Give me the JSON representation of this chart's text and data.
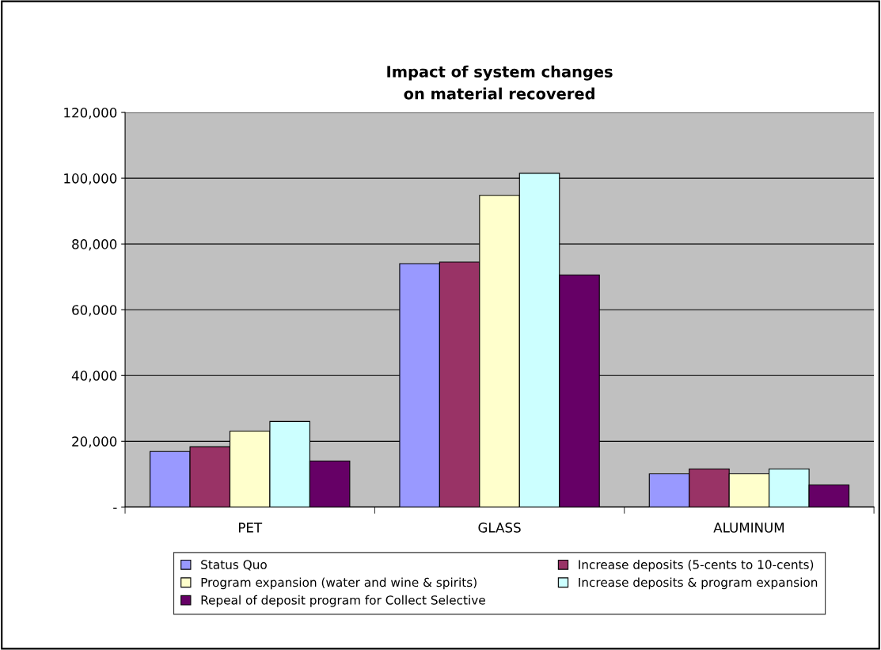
{
  "chart_data": {
    "type": "bar",
    "title": "Impact of system changes\non material recovered",
    "categories": [
      "PET",
      "GLASS",
      "ALUMINUM"
    ],
    "series": [
      {
        "name": "Status Quo",
        "color": "#9999ff",
        "values": [
          16900,
          74000,
          10100
        ]
      },
      {
        "name": "Increase deposits (5-cents to 10-cents)",
        "color": "#993366",
        "values": [
          18300,
          74500,
          11600
        ]
      },
      {
        "name": "Program expansion (water and wine & spirits)",
        "color": "#ffffcc",
        "values": [
          23100,
          94800,
          10100
        ]
      },
      {
        "name": "Increase deposits & program expansion",
        "color": "#ccffff",
        "values": [
          26000,
          101500,
          11600
        ]
      },
      {
        "name": "Repeal of deposit program for Collect Selective",
        "color": "#660066",
        "values": [
          14000,
          70600,
          6700
        ]
      }
    ],
    "ylim": [
      0,
      120000
    ],
    "yticks": [
      {
        "value": 0,
        "label": "-"
      },
      {
        "value": 20000,
        "label": "20,000"
      },
      {
        "value": 40000,
        "label": "40,000"
      },
      {
        "value": 60000,
        "label": "60,000"
      },
      {
        "value": 80000,
        "label": "80,000"
      },
      {
        "value": 100000,
        "label": "100,000"
      },
      {
        "value": 120000,
        "label": "120,000"
      }
    ],
    "grid": "y",
    "legend": "bottom"
  }
}
